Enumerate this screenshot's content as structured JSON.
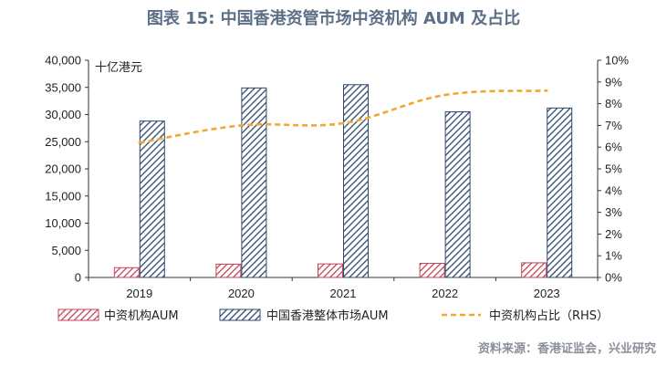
{
  "title": "图表 15: 中国香港资管市场中资机构 AUM 及占比",
  "source": "资料来源：香港证监会，兴业研究",
  "chart_data": {
    "type": "bar",
    "categories": [
      "2019",
      "2020",
      "2021",
      "2022",
      "2023"
    ],
    "unit_label": "十亿港元",
    "series": [
      {
        "name": "中资机构AUM",
        "axis": "left",
        "type": "bar",
        "values": [
          1800,
          2450,
          2500,
          2600,
          2700
        ],
        "color": "#c0455a"
      },
      {
        "name": "中国香港整体市场AUM",
        "axis": "left",
        "type": "bar",
        "values": [
          28800,
          34900,
          35500,
          30500,
          31200
        ],
        "color": "#2f4a6d"
      },
      {
        "name": "中资机构占比（RHS）",
        "axis": "right",
        "type": "line",
        "values": [
          6.2,
          7.0,
          7.1,
          8.4,
          8.6
        ],
        "color": "#f0a830"
      }
    ],
    "y_left": {
      "min": 0,
      "max": 40000,
      "ticks": [
        "0",
        "5,000",
        "10,000",
        "15,000",
        "20,000",
        "25,000",
        "30,000",
        "35,000",
        "40,000"
      ]
    },
    "y_right": {
      "min": 0,
      "max": 10,
      "ticks": [
        "0%",
        "1%",
        "2%",
        "3%",
        "4%",
        "5%",
        "6%",
        "7%",
        "8%",
        "9%",
        "10%"
      ]
    },
    "legend_position": "bottom",
    "grid": false
  }
}
